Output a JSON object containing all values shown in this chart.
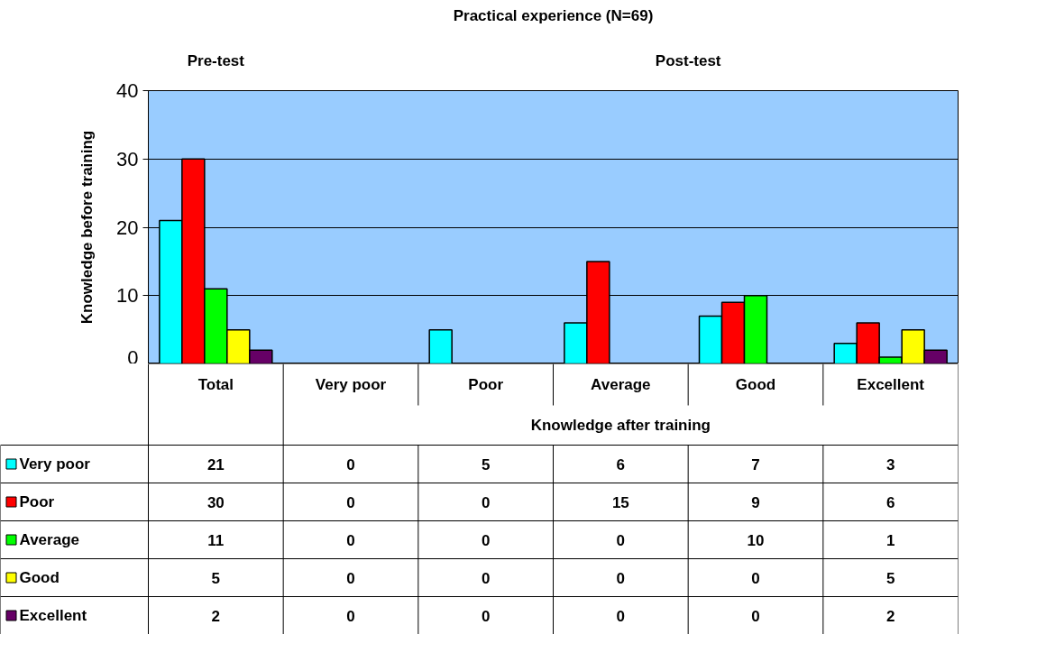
{
  "chart_data": {
    "type": "bar",
    "title": "Practical experience (N=69)",
    "ylabel": "Knowledge before training",
    "categories": [
      "Total",
      "Very poor",
      "Poor",
      "Average",
      "Good",
      "Excellent"
    ],
    "series": [
      {
        "name": "Very poor",
        "color": "#00ffff",
        "values": [
          21,
          0,
          5,
          6,
          7,
          3
        ]
      },
      {
        "name": "Poor",
        "color": "#ff0000",
        "values": [
          30,
          0,
          0,
          15,
          9,
          6
        ]
      },
      {
        "name": "Average",
        "color": "#00ff00",
        "values": [
          11,
          0,
          0,
          0,
          10,
          1
        ]
      },
      {
        "name": "Good",
        "color": "#ffff00",
        "values": [
          5,
          0,
          0,
          0,
          0,
          5
        ]
      },
      {
        "name": "Excellent",
        "color": "#660066",
        "values": [
          2,
          0,
          0,
          0,
          0,
          2
        ]
      }
    ],
    "ylim": [
      0,
      40
    ],
    "yticks": [
      0,
      10,
      20,
      30,
      40
    ],
    "grid": "y",
    "legend": "bottom left",
    "data_labels": true,
    "annotations": [
      "Pre-test",
      "Post-test",
      "Knowledge after training"
    ]
  }
}
